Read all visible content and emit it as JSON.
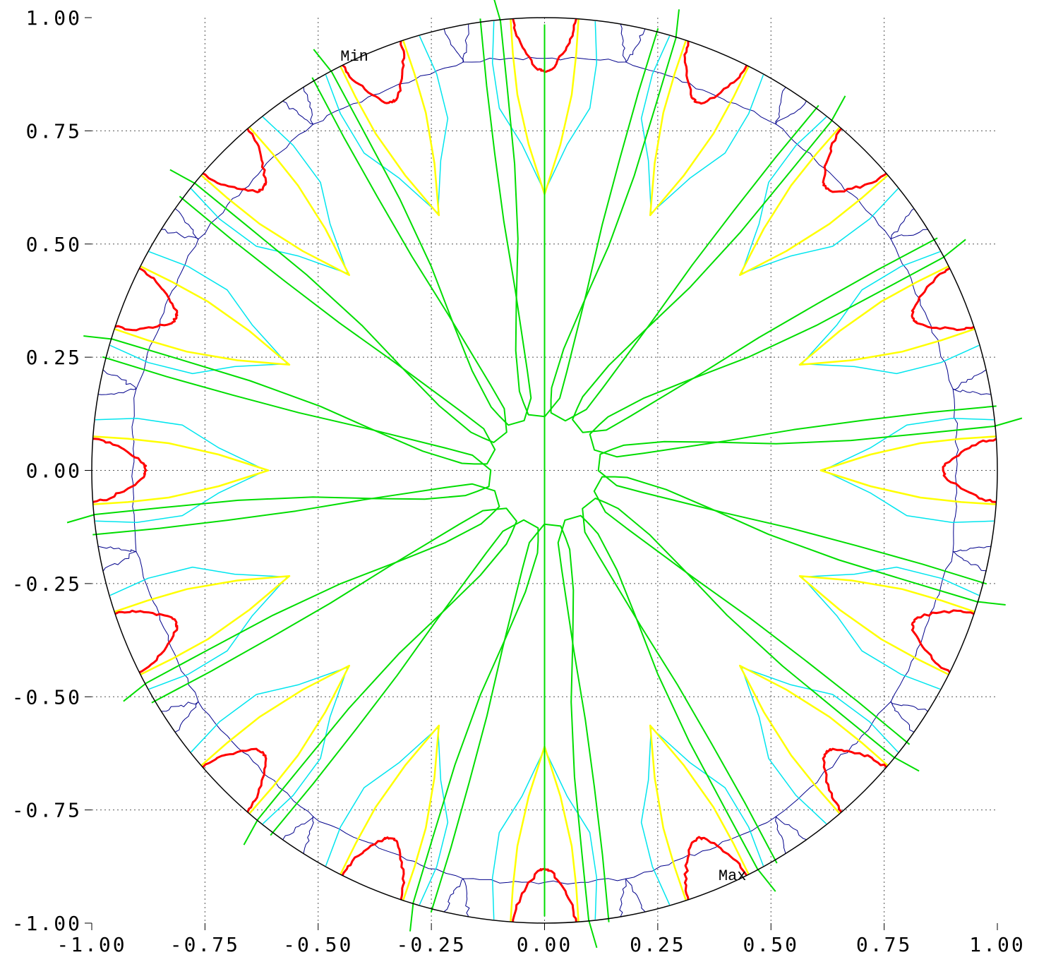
{
  "chart_data": {
    "type": "contour",
    "title": "",
    "xlabel": "",
    "ylabel": "",
    "xlim": [
      -1,
      1
    ],
    "ylim": [
      -1,
      1
    ],
    "grid": true,
    "grid_style": "dotted",
    "boundary": "unit-circle",
    "x_ticks": [
      "-1.00",
      "-0.75",
      "-0.50",
      "-0.25",
      "0.00",
      "0.25",
      "0.50",
      "0.75",
      "1.00"
    ],
    "y_ticks": [
      "1.00",
      "0.75",
      "0.50",
      "0.25",
      "0.00",
      "-0.25",
      "-0.50",
      "-0.75",
      "-1.00"
    ],
    "annotations": [
      {
        "text": "Min",
        "x": -0.42,
        "y": 0.905
      },
      {
        "text": "Max",
        "x": 0.415,
        "y": -0.905
      }
    ],
    "symmetry": "16-fold about origin (lobes every 22.5 degrees)",
    "contour_levels": [
      {
        "level": 1,
        "color": "#00008b",
        "width": 1,
        "lobes": [
          [
            [
              0.985,
              0.168
            ],
            [
              0.94,
              0.172
            ],
            [
              0.902,
              0.18
            ],
            [
              0.91,
              0.08
            ],
            [
              0.91,
              0.0
            ],
            [
              0.91,
              -0.08
            ],
            [
              0.902,
              -0.18
            ],
            [
              0.94,
              -0.172
            ],
            [
              0.985,
              -0.168
            ]
          ]
        ]
      },
      {
        "level": 2,
        "color": "#00e5ee",
        "width": 1.5,
        "lobes": [
          [
            [
              0.992,
              0.112
            ],
            [
              0.9,
              0.115
            ],
            [
              0.8,
              0.1
            ],
            [
              0.72,
              0.05
            ],
            [
              0.615,
              0.0
            ],
            [
              0.72,
              -0.05
            ],
            [
              0.8,
              -0.1
            ],
            [
              0.9,
              -0.115
            ],
            [
              0.992,
              -0.112
            ]
          ]
        ]
      },
      {
        "level": 3,
        "color": "#ffff00",
        "width": 2.5,
        "lobes": [
          [
            [
              0.997,
              0.075
            ],
            [
              0.92,
              0.07
            ],
            [
              0.83,
              0.06
            ],
            [
              0.72,
              0.035
            ],
            [
              0.61,
              0.0
            ],
            [
              0.72,
              -0.035
            ],
            [
              0.83,
              -0.06
            ],
            [
              0.92,
              -0.07
            ],
            [
              0.997,
              -0.075
            ]
          ]
        ]
      },
      {
        "level": 4,
        "color": "#ff0000",
        "width": 3,
        "lobes": [
          [
            [
              0.998,
              0.07
            ],
            [
              0.96,
              0.062
            ],
            [
              0.92,
              0.04
            ],
            [
              0.885,
              0.015
            ],
            [
              0.88,
              0.0
            ],
            [
              0.885,
              -0.015
            ],
            [
              0.92,
              -0.04
            ],
            [
              0.96,
              -0.062
            ],
            [
              0.998,
              -0.07
            ]
          ]
        ]
      },
      {
        "level": 5,
        "color": "#00dd00",
        "width": 2,
        "lobes": [
          [
            [
              0.998,
              0.142
            ],
            [
              0.85,
              0.128
            ],
            [
              0.7,
              0.11
            ],
            [
              0.55,
              0.09
            ],
            [
              0.4,
              0.065
            ],
            [
              0.22,
              0.038
            ],
            [
              0.16,
              0.03
            ],
            [
              0.11,
              0.045
            ],
            [
              0.1,
              0.08
            ],
            [
              0.12,
              0.1
            ],
            [
              0.14,
              0.118
            ],
            [
              0.22,
              0.16
            ],
            [
              0.32,
              0.2
            ],
            [
              0.45,
              0.25
            ],
            [
              0.6,
              0.32
            ],
            [
              0.75,
              0.4
            ],
            [
              0.88,
              0.47
            ],
            [
              0.93,
              0.51
            ]
          ]
        ]
      }
    ]
  }
}
